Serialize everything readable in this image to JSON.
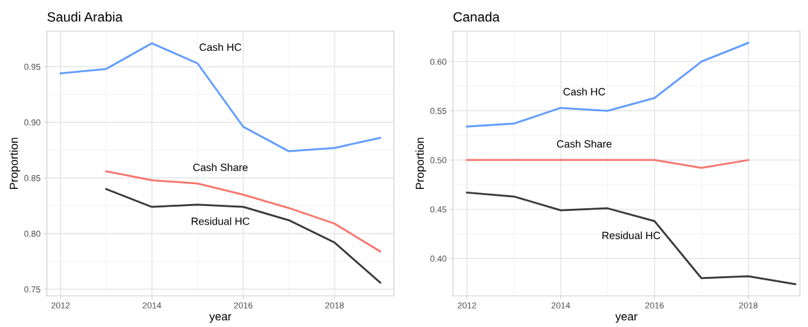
{
  "chart_data": [
    {
      "type": "line",
      "title": "Saudi Arabia",
      "xlabel": "year",
      "ylabel": "Proportion",
      "grid": true,
      "x": [
        2012,
        2013,
        2014,
        2015,
        2016,
        2017,
        2018,
        2019
      ],
      "series": [
        {
          "name": "Cash HC",
          "color": "#619cff",
          "values": [
            0.944,
            0.948,
            0.971,
            0.953,
            0.896,
            0.874,
            0.877,
            0.886
          ]
        },
        {
          "name": "Cash Share",
          "color": "#f8766d",
          "values": [
            null,
            0.856,
            0.848,
            0.845,
            0.835,
            0.823,
            0.809,
            0.784
          ]
        },
        {
          "name": "Residual HC",
          "color": "#3a3a3a",
          "values": [
            null,
            0.84,
            0.824,
            0.826,
            0.824,
            0.812,
            0.792,
            0.756
          ]
        }
      ],
      "xlim": [
        2011.7,
        2019.3
      ],
      "xticks": [
        2012,
        2014,
        2016,
        2018
      ],
      "ylim": [
        0.744,
        0.982
      ],
      "yticks": [
        0.75,
        {
          "value": 0.8,
          "label": "0.80"
        },
        0.85,
        {
          "value": 0.9,
          "label": "0.90"
        },
        0.95
      ]
    },
    {
      "type": "line",
      "title": "Canada",
      "xlabel": "year",
      "ylabel": "Proportion",
      "grid": true,
      "x": [
        2012,
        2013,
        2014,
        2015,
        2016,
        2017,
        2018,
        2019
      ],
      "series": [
        {
          "name": "Cash HC",
          "color": "#619cff",
          "values": [
            0.534,
            0.537,
            0.553,
            0.55,
            0.563,
            0.6,
            0.619,
            null
          ]
        },
        {
          "name": "Cash Share",
          "color": "#f8766d",
          "values": [
            0.5,
            0.5,
            0.5,
            0.5,
            0.5,
            0.492,
            0.5,
            null
          ]
        },
        {
          "name": "Residual HC",
          "color": "#3a3a3a",
          "values": [
            0.467,
            0.463,
            0.449,
            0.451,
            0.438,
            0.38,
            0.382,
            0.374
          ]
        }
      ],
      "xlim": [
        2011.7,
        2019.1
      ],
      "xticks": [
        2012,
        2014,
        2016,
        2018
      ],
      "ylim": [
        0.362,
        0.631
      ],
      "yticks": [
        {
          "value": 0.4,
          "label": "0.40"
        },
        0.45,
        {
          "value": 0.5,
          "label": "0.50"
        },
        0.55,
        {
          "value": 0.6,
          "label": "0.60"
        }
      ]
    }
  ]
}
